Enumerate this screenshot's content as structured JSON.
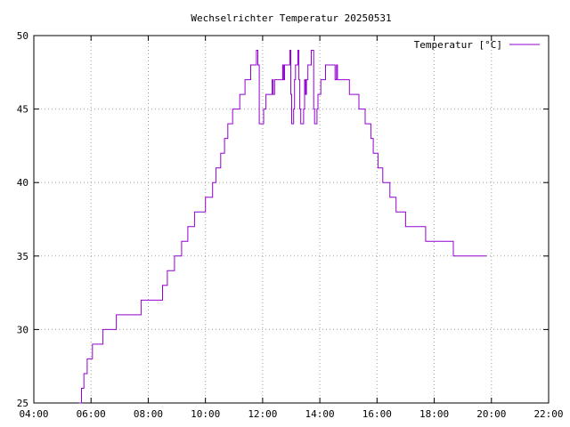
{
  "chart_data": {
    "type": "line",
    "title": "Wechselrichter Temperatur 20250531",
    "xlabel": "",
    "ylabel": "",
    "xlim": [
      "04:00",
      "22:00"
    ],
    "ylim": [
      25,
      50
    ],
    "x_ticks": [
      "04:00",
      "06:00",
      "08:00",
      "10:00",
      "12:00",
      "14:00",
      "16:00",
      "18:00",
      "20:00",
      "22:00"
    ],
    "y_ticks": [
      "25",
      "30",
      "35",
      "40",
      "45",
      "50"
    ],
    "grid": true,
    "legend_position": "top-right",
    "step": true,
    "series": [
      {
        "name": "Temperatur [°C]",
        "color": "#9400d3",
        "points": [
          [
            "05:35",
            25
          ],
          [
            "05:40",
            26
          ],
          [
            "05:45",
            27
          ],
          [
            "05:50",
            27
          ],
          [
            "05:52",
            28
          ],
          [
            "06:00",
            28
          ],
          [
            "06:03",
            29
          ],
          [
            "06:22",
            29
          ],
          [
            "06:25",
            30
          ],
          [
            "06:50",
            30
          ],
          [
            "06:53",
            31
          ],
          [
            "07:43",
            31
          ],
          [
            "07:45",
            32
          ],
          [
            "08:28",
            32
          ],
          [
            "08:30",
            33
          ],
          [
            "08:38",
            33
          ],
          [
            "08:40",
            34
          ],
          [
            "08:52",
            34
          ],
          [
            "08:55",
            35
          ],
          [
            "09:07",
            35
          ],
          [
            "09:10",
            36
          ],
          [
            "09:20",
            36
          ],
          [
            "09:23",
            37
          ],
          [
            "09:35",
            37
          ],
          [
            "09:37",
            38
          ],
          [
            "09:57",
            38
          ],
          [
            "10:00",
            39
          ],
          [
            "10:12",
            39
          ],
          [
            "10:15",
            40
          ],
          [
            "10:20",
            40
          ],
          [
            "10:22",
            41
          ],
          [
            "10:30",
            41
          ],
          [
            "10:32",
            42
          ],
          [
            "10:37",
            42
          ],
          [
            "10:40",
            43
          ],
          [
            "10:45",
            43
          ],
          [
            "10:47",
            44
          ],
          [
            "10:55",
            44
          ],
          [
            "10:57",
            45
          ],
          [
            "11:10",
            45
          ],
          [
            "11:12",
            46
          ],
          [
            "11:20",
            46
          ],
          [
            "11:23",
            47
          ],
          [
            "11:32",
            47
          ],
          [
            "11:35",
            48
          ],
          [
            "11:45",
            48
          ],
          [
            "11:47",
            49
          ],
          [
            "11:50",
            48
          ],
          [
            "11:53",
            44
          ],
          [
            "12:00",
            44
          ],
          [
            "12:02",
            45
          ],
          [
            "12:05",
            45
          ],
          [
            "12:07",
            46
          ],
          [
            "12:17",
            46
          ],
          [
            "12:20",
            47
          ],
          [
            "12:22",
            46
          ],
          [
            "12:25",
            47
          ],
          [
            "12:40",
            47
          ],
          [
            "12:42",
            48
          ],
          [
            "12:44",
            47
          ],
          [
            "12:46",
            48
          ],
          [
            "12:55",
            48
          ],
          [
            "12:57",
            49
          ],
          [
            "12:59",
            46
          ],
          [
            "13:01",
            44
          ],
          [
            "13:03",
            44
          ],
          [
            "13:05",
            45
          ],
          [
            "13:07",
            47
          ],
          [
            "13:09",
            48
          ],
          [
            "13:12",
            48
          ],
          [
            "13:14",
            49
          ],
          [
            "13:16",
            47
          ],
          [
            "13:18",
            45
          ],
          [
            "13:20",
            44
          ],
          [
            "13:24",
            44
          ],
          [
            "13:26",
            45
          ],
          [
            "13:28",
            47
          ],
          [
            "13:30",
            46
          ],
          [
            "13:32",
            47
          ],
          [
            "13:35",
            48
          ],
          [
            "13:40",
            48
          ],
          [
            "13:42",
            49
          ],
          [
            "13:45",
            49
          ],
          [
            "13:47",
            45
          ],
          [
            "13:49",
            44
          ],
          [
            "13:52",
            44
          ],
          [
            "13:54",
            45
          ],
          [
            "13:56",
            46
          ],
          [
            "14:00",
            46
          ],
          [
            "14:02",
            47
          ],
          [
            "14:10",
            47
          ],
          [
            "14:12",
            48
          ],
          [
            "14:30",
            48
          ],
          [
            "14:32",
            47
          ],
          [
            "14:35",
            48
          ],
          [
            "14:37",
            47
          ],
          [
            "14:45",
            47
          ],
          [
            "15:00",
            47
          ],
          [
            "15:02",
            46
          ],
          [
            "15:20",
            46
          ],
          [
            "15:22",
            45
          ],
          [
            "15:32",
            45
          ],
          [
            "15:35",
            44
          ],
          [
            "15:45",
            44
          ],
          [
            "15:47",
            43
          ],
          [
            "15:50",
            43
          ],
          [
            "15:52",
            42
          ],
          [
            "16:00",
            42
          ],
          [
            "16:02",
            41
          ],
          [
            "16:10",
            41
          ],
          [
            "16:12",
            40
          ],
          [
            "16:25",
            40
          ],
          [
            "16:27",
            39
          ],
          [
            "16:37",
            39
          ],
          [
            "16:40",
            38
          ],
          [
            "16:57",
            38
          ],
          [
            "17:00",
            37
          ],
          [
            "17:40",
            37
          ],
          [
            "17:42",
            36
          ],
          [
            "18:38",
            36
          ],
          [
            "18:40",
            35
          ],
          [
            "19:50",
            35
          ]
        ]
      }
    ]
  }
}
